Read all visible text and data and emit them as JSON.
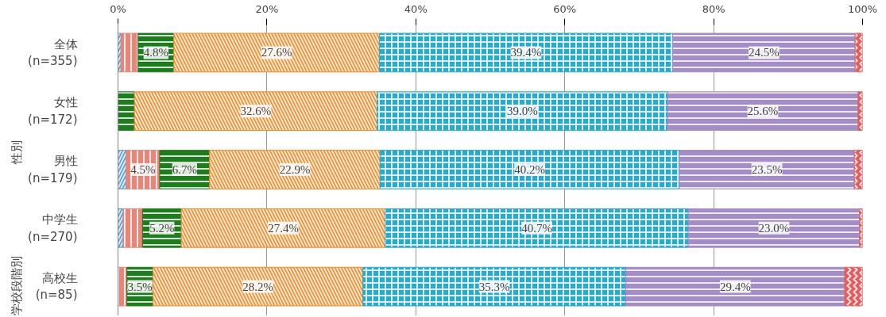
{
  "chart_data": {
    "type": "bar",
    "orientation": "horizontal",
    "stacked": true,
    "categories": [
      "全体\n(n=355)",
      "女性\n(n=172)",
      "男性\n(n=179)",
      "中学生\n(n=270)",
      "高校生\n(n=85)"
    ],
    "annotations": [
      "性別",
      "学校段階別"
    ],
    "xlim": [
      0,
      100
    ],
    "xticks": [
      {
        "value": 0,
        "label": "0%"
      },
      {
        "value": 20,
        "label": "20%"
      },
      {
        "value": 40,
        "label": "40%"
      },
      {
        "value": 60,
        "label": "60%"
      },
      {
        "value": 80,
        "label": "80%"
      },
      {
        "value": 100,
        "label": "100%"
      }
    ],
    "grid": "x",
    "series": [
      {
        "color": "#5b9bd5",
        "values": [
          0.4,
          0,
          1.1,
          0.7,
          0
        ],
        "value_labels": [
          null,
          null,
          null,
          null,
          null
        ]
      },
      {
        "color": "#e6867a",
        "values": [
          2.3,
          0,
          4.5,
          2.6,
          1.2
        ],
        "value_labels": [
          null,
          null,
          "4.5%",
          null,
          null
        ]
      },
      {
        "color": "#1e7b1e",
        "values": [
          4.8,
          2.2,
          6.7,
          5.2,
          3.5
        ],
        "value_labels": [
          "4.8%",
          null,
          "6.7%",
          "5.2%",
          "3.5%"
        ]
      },
      {
        "color": "#f28a26",
        "values": [
          27.6,
          32.6,
          22.9,
          27.4,
          28.2
        ],
        "value_labels": [
          "27.6%",
          "32.6%",
          "22.9%",
          "27.4%",
          "28.2%"
        ]
      },
      {
        "color": "#2ea8c8",
        "values": [
          39.4,
          39.0,
          40.2,
          40.7,
          35.3
        ],
        "value_labels": [
          "39.4%",
          "39.0%",
          "40.2%",
          "40.7%",
          "35.3%"
        ]
      },
      {
        "color": "#a48cc4",
        "values": [
          24.5,
          25.6,
          23.5,
          23.0,
          29.4
        ],
        "value_labels": [
          "24.5%",
          "25.6%",
          "23.5%",
          "23.0%",
          "29.4%"
        ]
      },
      {
        "color": "#e06060",
        "values": [
          1.0,
          0.6,
          1.1,
          0.4,
          2.4
        ],
        "value_labels": [
          null,
          null,
          null,
          null,
          null
        ]
      }
    ]
  }
}
